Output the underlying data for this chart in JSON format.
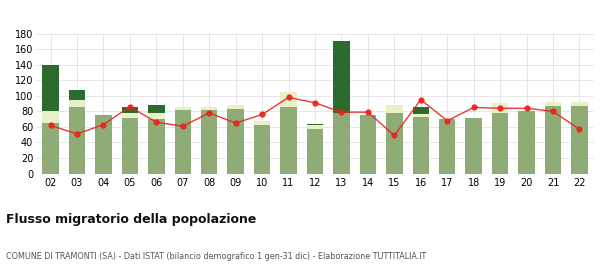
{
  "years": [
    "02",
    "03",
    "04",
    "05",
    "06",
    "07",
    "08",
    "09",
    "10",
    "11",
    "12",
    "13",
    "14",
    "15",
    "16",
    "17",
    "18",
    "19",
    "20",
    "21",
    "22"
  ],
  "iscritti_altri_comuni": [
    65,
    85,
    75,
    72,
    70,
    82,
    82,
    83,
    63,
    85,
    57,
    78,
    75,
    78,
    73,
    70,
    72,
    78,
    80,
    87,
    87
  ],
  "iscritti_estero": [
    15,
    10,
    0,
    6,
    8,
    3,
    4,
    5,
    4,
    20,
    5,
    0,
    0,
    10,
    4,
    0,
    0,
    13,
    0,
    5,
    5
  ],
  "iscritti_altri": [
    60,
    12,
    0,
    8,
    10,
    0,
    0,
    0,
    0,
    0,
    2,
    93,
    0,
    0,
    8,
    0,
    0,
    0,
    0,
    0,
    0
  ],
  "cancellati": [
    62,
    51,
    63,
    86,
    66,
    61,
    78,
    65,
    76,
    98,
    91,
    79,
    79,
    49,
    95,
    68,
    85,
    84,
    84,
    80,
    57
  ],
  "color_altri_comuni": "#8fac76",
  "color_estero": "#e8f0c8",
  "color_altri": "#2d6a2d",
  "color_cancellati": "#e8241c",
  "ylim": [
    0,
    180
  ],
  "yticks": [
    0,
    20,
    40,
    60,
    80,
    100,
    120,
    140,
    160,
    180
  ],
  "grid_color": "#dddddd",
  "title": "Flusso migratorio della popolazione",
  "subtitle": "COMUNE DI TRAMONTI (SA) - Dati ISTAT (bilancio demografico 1 gen-31 dic) - Elaborazione TUTTITALIA.IT"
}
